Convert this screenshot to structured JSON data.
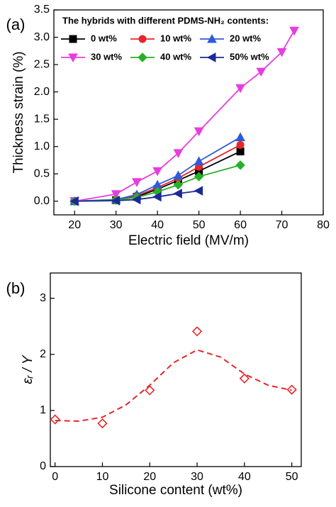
{
  "chart_data": [
    {
      "type": "line",
      "panel_label": "(a)",
      "x_label": "Electric field (MV/m)",
      "y_label": "Thickness strain (%)",
      "xlim": [
        15,
        80
      ],
      "xticks": [
        20,
        30,
        40,
        50,
        60,
        70,
        80
      ],
      "ylim": [
        -0.25,
        3.5
      ],
      "yticks": [
        {
          "value": 0,
          "label": "0.0"
        },
        0.5,
        {
          "value": 1,
          "label": "1.0"
        },
        1.5,
        {
          "value": 2,
          "label": "2.0"
        },
        2.5,
        {
          "value": 3,
          "label": "3.0"
        },
        3.5
      ],
      "legend": "upper left",
      "legend_title": "The hybrids with different PDMS-NH₂ contents:",
      "series": [
        {
          "name": "0 wt%",
          "color": "#000000",
          "marker": "square",
          "x": [
            20,
            30,
            35,
            40,
            45,
            50,
            60
          ],
          "values": [
            0,
            0.02,
            0.08,
            0.22,
            0.38,
            0.55,
            0.91
          ]
        },
        {
          "name": "10 wt%",
          "color": "#e8262a",
          "marker": "circle",
          "x": [
            20,
            30,
            35,
            40,
            45,
            50,
            60
          ],
          "values": [
            0,
            0.03,
            0.1,
            0.25,
            0.42,
            0.63,
            1.03
          ]
        },
        {
          "name": "20 wt%",
          "color": "#2f5bd9",
          "marker": "triangle-up",
          "x": [
            20,
            30,
            35,
            40,
            45,
            50,
            60
          ],
          "values": [
            0,
            0.03,
            0.12,
            0.3,
            0.47,
            0.73,
            1.17
          ]
        },
        {
          "name": "30 wt%",
          "color": "#e83ce0",
          "marker": "triangle-down",
          "x": [
            20,
            30,
            35,
            40,
            45,
            50,
            60,
            65,
            70,
            73
          ],
          "values": [
            0,
            0.13,
            0.35,
            0.55,
            0.88,
            1.28,
            2.07,
            2.37,
            2.73,
            3.12
          ]
        },
        {
          "name": "40 wt%",
          "color": "#27b027",
          "marker": "diamond",
          "x": [
            20,
            30,
            35,
            40,
            45,
            50,
            60
          ],
          "values": [
            0,
            0.02,
            0.07,
            0.17,
            0.3,
            0.45,
            0.66
          ]
        },
        {
          "name": "50% wt%",
          "color": "#1a2a9a",
          "marker": "triangle-left",
          "x": [
            20,
            30,
            35,
            40,
            45,
            50
          ],
          "values": [
            0,
            0.01,
            0.03,
            0.08,
            0.14,
            0.19
          ]
        }
      ]
    },
    {
      "type": "scatter",
      "panel_label": "(b)",
      "x_label": "Silicone content (wt%)",
      "y_label": "εᵣ / Y",
      "xlim": [
        -1,
        52
      ],
      "xticks": [
        0,
        10,
        20,
        30,
        40,
        50
      ],
      "ylim": [
        0,
        3.45
      ],
      "yticks": [
        0,
        1,
        2,
        3
      ],
      "series": [
        {
          "color": "#e8262a",
          "marker": "open-diamond",
          "x": [
            0,
            10,
            20,
            30,
            40,
            50
          ],
          "values": [
            0.84,
            0.77,
            1.36,
            2.41,
            1.57,
            1.37
          ]
        },
        {
          "color": "#e8262a",
          "line": "dashed",
          "x": [
            0,
            5,
            10,
            15,
            20,
            25,
            30,
            35,
            40,
            45,
            50
          ],
          "values": [
            0.82,
            0.81,
            0.88,
            1.1,
            1.45,
            1.85,
            2.08,
            1.95,
            1.65,
            1.45,
            1.36
          ]
        }
      ]
    }
  ]
}
